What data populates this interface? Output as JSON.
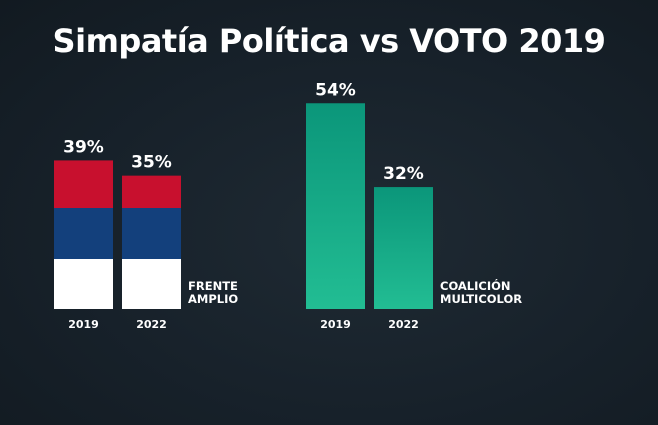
{
  "chart_data": {
    "type": "bar",
    "title": "Simpatía Política vs VOTO 2019",
    "unit": "%",
    "groups": [
      {
        "name_lines": [
          "FRENTE",
          "AMPLIO"
        ],
        "categories": [
          "2019",
          "2022"
        ],
        "values": [
          39,
          35
        ],
        "value_labels": [
          "39%",
          "35%"
        ],
        "style": "flag",
        "colors": [
          "#c8102e",
          "#13407c",
          "#ffffff"
        ]
      },
      {
        "name_lines": [
          "COALICIÓN",
          "MULTICOLOR"
        ],
        "categories": [
          "2019",
          "2022"
        ],
        "values": [
          54,
          32
        ],
        "value_labels": [
          "54%",
          "32%"
        ],
        "style": "gradient",
        "colors": [
          "#0d9a7a",
          "#1fb891"
        ]
      }
    ],
    "grid": false,
    "legend": "none"
  }
}
